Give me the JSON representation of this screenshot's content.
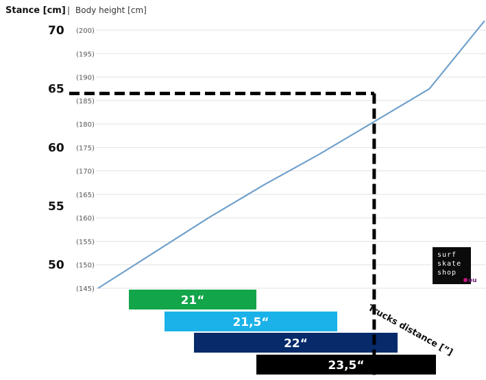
{
  "chart_data": {
    "type": "line",
    "title": "Stance [cm]",
    "subtitle": "Body height [cm]",
    "separator": "|",
    "x_axis_label": "Trucks distance [”]",
    "left_ticks": [
      "70",
      "65",
      "60",
      "55",
      "50"
    ],
    "left_tick_values": [
      70,
      65,
      60,
      55,
      50
    ],
    "right_ticks": [
      "(200)",
      "(195)",
      "(190)",
      "(185)",
      "(180)",
      "(175)",
      "(170)",
      "(165)",
      "(160)",
      "(155)",
      "(150)",
      "(145)"
    ],
    "right_tick_values": [
      200,
      195,
      190,
      185,
      180,
      175,
      170,
      165,
      160,
      155,
      150,
      145
    ],
    "height_range": [
      145,
      200
    ],
    "grid": true,
    "series": [
      {
        "color": "#6fa0cc",
        "x_trucks_distance": [
          21.0,
          21.5,
          22.0,
          22.5,
          23.0,
          23.5,
          24.0,
          24.5
        ],
        "body_height": [
          145,
          152.5,
          160,
          167,
          173.5,
          180.5,
          187.5,
          202
        ]
      }
    ],
    "reference_line": {
      "stance": 65,
      "body_height": 186.5,
      "trucks_distance": 23.5,
      "color": "#000000",
      "style": "dashed"
    },
    "bars": [
      {
        "label": "21“",
        "value": 21.0,
        "color": "#12a54a"
      },
      {
        "label": "21,5“",
        "value": 21.5,
        "color": "#1ab2e8"
      },
      {
        "label": "22“",
        "value": 22.0,
        "color": "#062a6a"
      },
      {
        "label": "23,5“",
        "value": 23.5,
        "color": "#000000"
      }
    ]
  },
  "logo": {
    "lines": [
      "surf",
      "skate",
      "shop"
    ],
    "suffix": "eu"
  }
}
